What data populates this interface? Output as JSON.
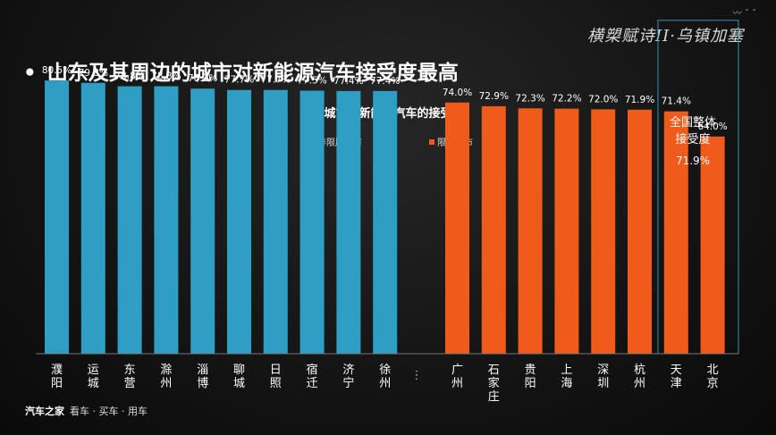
{
  "header": {
    "brand_text": "横槊赋诗II·乌镇加塞",
    "bullet": "•",
    "headline": "山东及其周边的城市对新能源汽车接受度最高"
  },
  "footer": {
    "logo": "汽车之家",
    "tagline": "看车 · 买车 · 用车"
  },
  "chart_data": {
    "type": "bar",
    "title": "各城市对新能源汽车的接受度",
    "unit": "%",
    "ylim": [
      0,
      100
    ],
    "grid": false,
    "legend_position": "top",
    "separator_label": "⋮",
    "series": [
      {
        "name": "非限牌城市",
        "color": "#2f9ec4",
        "categories": [
          "濮阳",
          "运城",
          "东营",
          "滁州",
          "淄博",
          "聊城",
          "日照",
          "宿迁",
          "济宁",
          "徐州"
        ],
        "values": [
          80.5,
          79.8,
          78.8,
          78.8,
          78.1,
          77.7,
          77.7,
          77.5,
          77.4,
          77.4
        ],
        "labels": [
          "80.5%",
          "79.8%",
          "78.8%",
          "78.8%",
          "78.1%",
          "77.7%",
          "77.7%",
          "77.5%",
          "77.4%",
          "77.4%"
        ]
      },
      {
        "name": "限牌城市",
        "color": "#f05a1a",
        "categories": [
          "广州",
          "石家庄",
          "贵阳",
          "上海",
          "深圳",
          "杭州",
          "天津",
          "北京"
        ],
        "values": [
          74.0,
          72.9,
          72.3,
          72.2,
          72.0,
          71.9,
          71.4,
          64.0
        ],
        "labels": [
          "74.0%",
          "72.9%",
          "72.3%",
          "72.2%",
          "72.0%",
          "71.9%",
          "71.4%",
          "64.0%"
        ]
      }
    ],
    "annotation": {
      "text_line1": "全国整体",
      "text_line2": "接受度",
      "value": 71.9,
      "value_label": "71.9%",
      "line_color": "#3a8fb0"
    }
  }
}
